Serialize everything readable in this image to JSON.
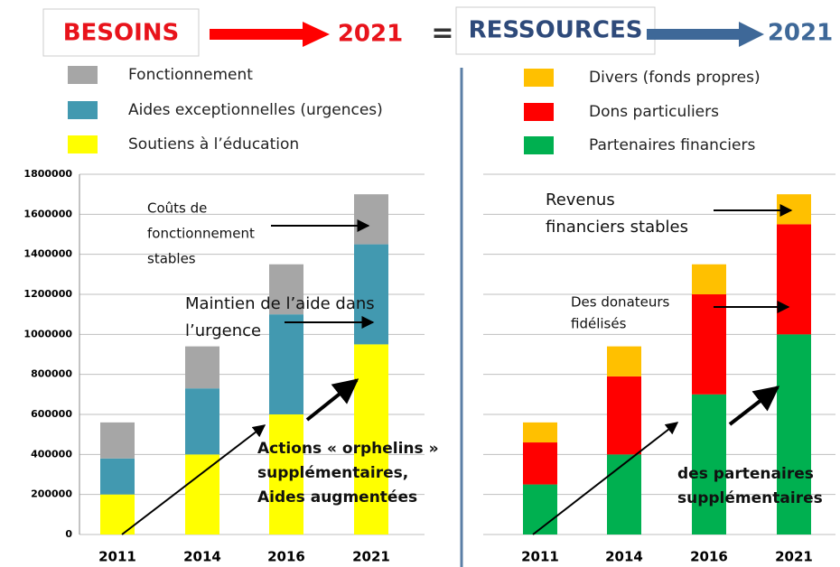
{
  "header": {
    "left_title": "BESOINS",
    "left_year": "2021",
    "equals": "=",
    "right_title": "RESSOURCES",
    "right_year": "2021"
  },
  "chart_data": [
    {
      "type": "stacked_bar",
      "categories": [
        "2011",
        "2014",
        "2016",
        "2021"
      ],
      "series": [
        {
          "name": "Fonctionnement",
          "color": "#a6a6a6",
          "values": [
            180000,
            210000,
            250000,
            250000
          ]
        },
        {
          "name": "Aides exceptionnelles (urgences)",
          "color": "#4299b0",
          "values": [
            180000,
            330000,
            500000,
            500000
          ]
        },
        {
          "name": "Soutiens à l’éducation",
          "color": "#ffff00",
          "values": [
            200000,
            400000,
            600000,
            950000
          ]
        }
      ],
      "ylim": [
        0,
        1800000
      ],
      "yticks": [
        0,
        200000,
        400000,
        600000,
        800000,
        1000000,
        1200000,
        1400000,
        1600000,
        1800000
      ],
      "grid": true,
      "annotations": [
        {
          "lines": [
            "Coûts de",
            "fonctionnement",
            "stables"
          ]
        },
        {
          "lines": [
            "Maintien de l’aide dans",
            "l’urgence"
          ]
        },
        {
          "lines": [
            "Actions « orphelins »",
            "supplémentaires,",
            "Aides augmentées"
          ]
        }
      ]
    },
    {
      "type": "stacked_bar",
      "categories": [
        "2011",
        "2014",
        "2016",
        "2021"
      ],
      "series": [
        {
          "name": "Divers (fonds propres)",
          "color": "#ffc000",
          "values": [
            100000,
            150000,
            150000,
            150000
          ]
        },
        {
          "name": "Dons particuliers",
          "color": "#ff0000",
          "values": [
            210000,
            390000,
            500000,
            550000
          ]
        },
        {
          "name": "Partenaires financiers",
          "color": "#00b050",
          "values": [
            250000,
            400000,
            700000,
            1000000
          ]
        }
      ],
      "ylim": [
        0,
        1800000
      ],
      "grid": true,
      "annotations": [
        {
          "lines": [
            "Revenus",
            "financiers stables"
          ]
        },
        {
          "lines": [
            "Des donateurs",
            "fidélisés"
          ]
        },
        {
          "lines": [
            "des partenaires",
            "supplémentaires"
          ]
        }
      ]
    }
  ]
}
